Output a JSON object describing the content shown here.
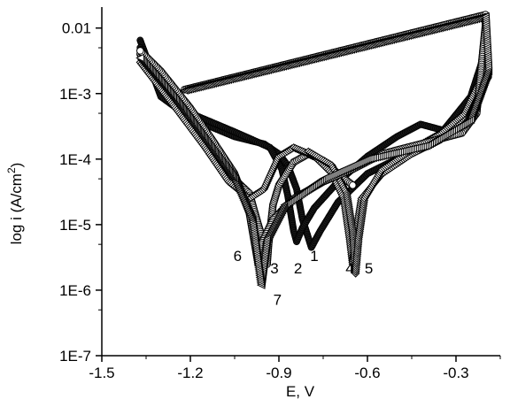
{
  "chart_data": {
    "type": "line",
    "title": "",
    "xlabel": "E, V",
    "ylabel": "log i (A/cm²)",
    "ylabel_parts": {
      "main": "log i (A/cm",
      "sup": "2",
      "tail": ")"
    },
    "xlim": [
      -1.5,
      -0.15
    ],
    "ylim_log": [
      -7,
      -1.68
    ],
    "y_scale": "log",
    "x_ticks": [
      -1.5,
      -1.2,
      -0.9,
      -0.6,
      -0.3
    ],
    "x_tick_labels": [
      "-1.5",
      "-1.2",
      "-0.9",
      "-0.6",
      "-0.3"
    ],
    "y_ticks": [
      0.01,
      0.001,
      0.0001,
      1e-05,
      1e-06,
      1e-07
    ],
    "y_tick_labels": [
      "0.01",
      "1E-3",
      "1E-4",
      "1E-5",
      "1E-6",
      "1E-7"
    ],
    "grid": false,
    "legend": "none",
    "series": [
      {
        "label": "1",
        "marker": "circle-filled",
        "points": [
          [
            -1.37,
            0.0065
          ],
          [
            -1.3,
            0.0009
          ],
          [
            -1.2,
            0.00042
          ],
          [
            -1.05,
            0.00022
          ],
          [
            -0.95,
            0.00017
          ],
          [
            -0.9,
            0.00012
          ],
          [
            -0.87,
            8e-05
          ],
          [
            -0.84,
            3.5e-05
          ],
          [
            -0.82,
            1.2e-05
          ],
          [
            -0.79,
            4.5e-06
          ],
          [
            -0.76,
            8e-06
          ],
          [
            -0.7,
            2.2e-05
          ],
          [
            -0.6,
            6e-05
          ],
          [
            -0.45,
            0.00013
          ],
          [
            -0.35,
            0.00025
          ],
          [
            -0.25,
            0.0009
          ],
          [
            -0.2,
            0.0045
          ]
        ]
      },
      {
        "label": "2",
        "marker": "circle-filled",
        "points": [
          [
            -1.37,
            0.005
          ],
          [
            -1.3,
            0.0012
          ],
          [
            -1.2,
            0.0005
          ],
          [
            -1.05,
            0.00026
          ],
          [
            -0.93,
            0.00015
          ],
          [
            -0.89,
            7e-05
          ],
          [
            -0.87,
            2.8e-05
          ],
          [
            -0.85,
            8e-06
          ],
          [
            -0.84,
            5.5e-06
          ],
          [
            -0.82,
            9e-06
          ],
          [
            -0.78,
            1.8e-05
          ],
          [
            -0.7,
            4.5e-05
          ],
          [
            -0.6,
            0.00011
          ],
          [
            -0.5,
            0.00022
          ],
          [
            -0.42,
            0.00034
          ],
          [
            -0.35,
            0.00028
          ],
          [
            -0.28,
            0.0003
          ],
          [
            -0.22,
            0.0011
          ],
          [
            -0.19,
            0.0018
          ]
        ]
      },
      {
        "label": "3",
        "marker": "circle-open",
        "points": [
          [
            -1.37,
            0.004
          ],
          [
            -1.25,
            0.0008
          ],
          [
            -1.15,
            0.0002
          ],
          [
            -1.07,
            6e-05
          ],
          [
            -1.0,
            3e-05
          ],
          [
            -0.97,
            1e-05
          ],
          [
            -0.95,
            5e-06
          ],
          [
            -0.94,
            2.5e-06
          ],
          [
            -0.935,
            5e-06
          ],
          [
            -0.92,
            2e-05
          ],
          [
            -0.9,
            4e-05
          ],
          [
            -0.85,
            9e-05
          ],
          [
            -0.8,
            0.00012
          ],
          [
            -0.75,
            9.5e-05
          ],
          [
            -0.7,
            6e-05
          ],
          [
            -0.65,
            4e-05
          ]
        ]
      },
      {
        "label": "4",
        "marker": "diamond-open",
        "points": [
          [
            -1.37,
            0.003
          ],
          [
            -1.25,
            0.0006
          ],
          [
            -1.15,
            0.00015
          ],
          [
            -1.07,
            4.5e-05
          ],
          [
            -1.0,
            2.5e-05
          ],
          [
            -0.95,
            3.5e-05
          ],
          [
            -0.9,
            0.00011
          ],
          [
            -0.85,
            0.00015
          ],
          [
            -0.78,
            0.00011
          ],
          [
            -0.72,
            6e-05
          ],
          [
            -0.68,
            2.5e-05
          ],
          [
            -0.66,
            6e-06
          ],
          [
            -0.65,
            2.5e-06
          ],
          [
            -0.64,
            7e-06
          ],
          [
            -0.62,
            2.5e-05
          ],
          [
            -0.55,
            6e-05
          ],
          [
            -0.45,
            0.00012
          ],
          [
            -0.35,
            0.0002
          ],
          [
            -0.27,
            0.00045
          ],
          [
            -0.2,
            0.0028
          ]
        ]
      },
      {
        "label": "5",
        "marker": "diamond-open",
        "points": [
          [
            -0.8,
            0.00013
          ],
          [
            -0.72,
            8e-05
          ],
          [
            -0.67,
            3e-05
          ],
          [
            -0.65,
            8e-06
          ],
          [
            -0.64,
            1.8e-06
          ],
          [
            -0.63,
            6e-06
          ],
          [
            -0.61,
            2.5e-05
          ],
          [
            -0.55,
            7e-05
          ],
          [
            -0.45,
            0.00014
          ],
          [
            -0.35,
            0.00025
          ],
          [
            -0.27,
            0.0005
          ],
          [
            -0.2,
            0.0023
          ]
        ]
      },
      {
        "label": "6",
        "marker": "circle-open",
        "points": [
          [
            -1.22,
            0.00115
          ],
          [
            -0.2,
            0.016
          ],
          [
            -0.2,
            0.011
          ],
          [
            -0.23,
            0.0005
          ],
          [
            -0.28,
            0.00025
          ],
          [
            -0.4,
            0.00018
          ],
          [
            -0.55,
            0.00012
          ],
          [
            -0.65,
            7e-05
          ],
          [
            -0.75,
            4.5e-05
          ],
          [
            -0.85,
            2.5e-05
          ],
          [
            -0.92,
            1.2e-05
          ],
          [
            -0.96,
            5e-06
          ],
          [
            -0.97,
            2.5e-06
          ],
          [
            -0.98,
            4.5e-06
          ],
          [
            -1.0,
            1.5e-05
          ],
          [
            -1.05,
            6e-05
          ],
          [
            -1.12,
            0.00018
          ],
          [
            -1.2,
            0.0006
          ],
          [
            -1.3,
            0.0022
          ],
          [
            -1.37,
            0.0045
          ]
        ]
      },
      {
        "label": "7",
        "marker": "triangle-open",
        "points": [
          [
            -1.22,
            0.00112
          ],
          [
            -0.2,
            0.015
          ],
          [
            -0.19,
            0.0022
          ],
          [
            -0.25,
            0.0004
          ],
          [
            -0.4,
            0.00016
          ],
          [
            -0.6,
            0.0001
          ],
          [
            -0.75,
            5e-05
          ],
          [
            -0.88,
            2e-05
          ],
          [
            -0.94,
            6e-06
          ],
          [
            -0.96,
            1.2e-06
          ],
          [
            -0.97,
            2.5e-06
          ],
          [
            -0.99,
            1.2e-05
          ],
          [
            -1.05,
            5e-05
          ],
          [
            -1.15,
            0.0002
          ],
          [
            -1.25,
            0.0008
          ],
          [
            -1.37,
            0.0035
          ]
        ]
      }
    ],
    "annotations": [
      {
        "text": "1",
        "x": -0.78,
        "y": 2.8e-06
      },
      {
        "text": "2",
        "x": -0.835,
        "y": 1.8e-06
      },
      {
        "text": "3",
        "x": -0.915,
        "y": 1.8e-06
      },
      {
        "text": "4",
        "x": -0.66,
        "y": 1.8e-06
      },
      {
        "text": "5",
        "x": -0.595,
        "y": 1.8e-06
      },
      {
        "text": "6",
        "x": -1.04,
        "y": 2.8e-06
      },
      {
        "text": "7",
        "x": -0.905,
        "y": 6e-07
      }
    ]
  }
}
